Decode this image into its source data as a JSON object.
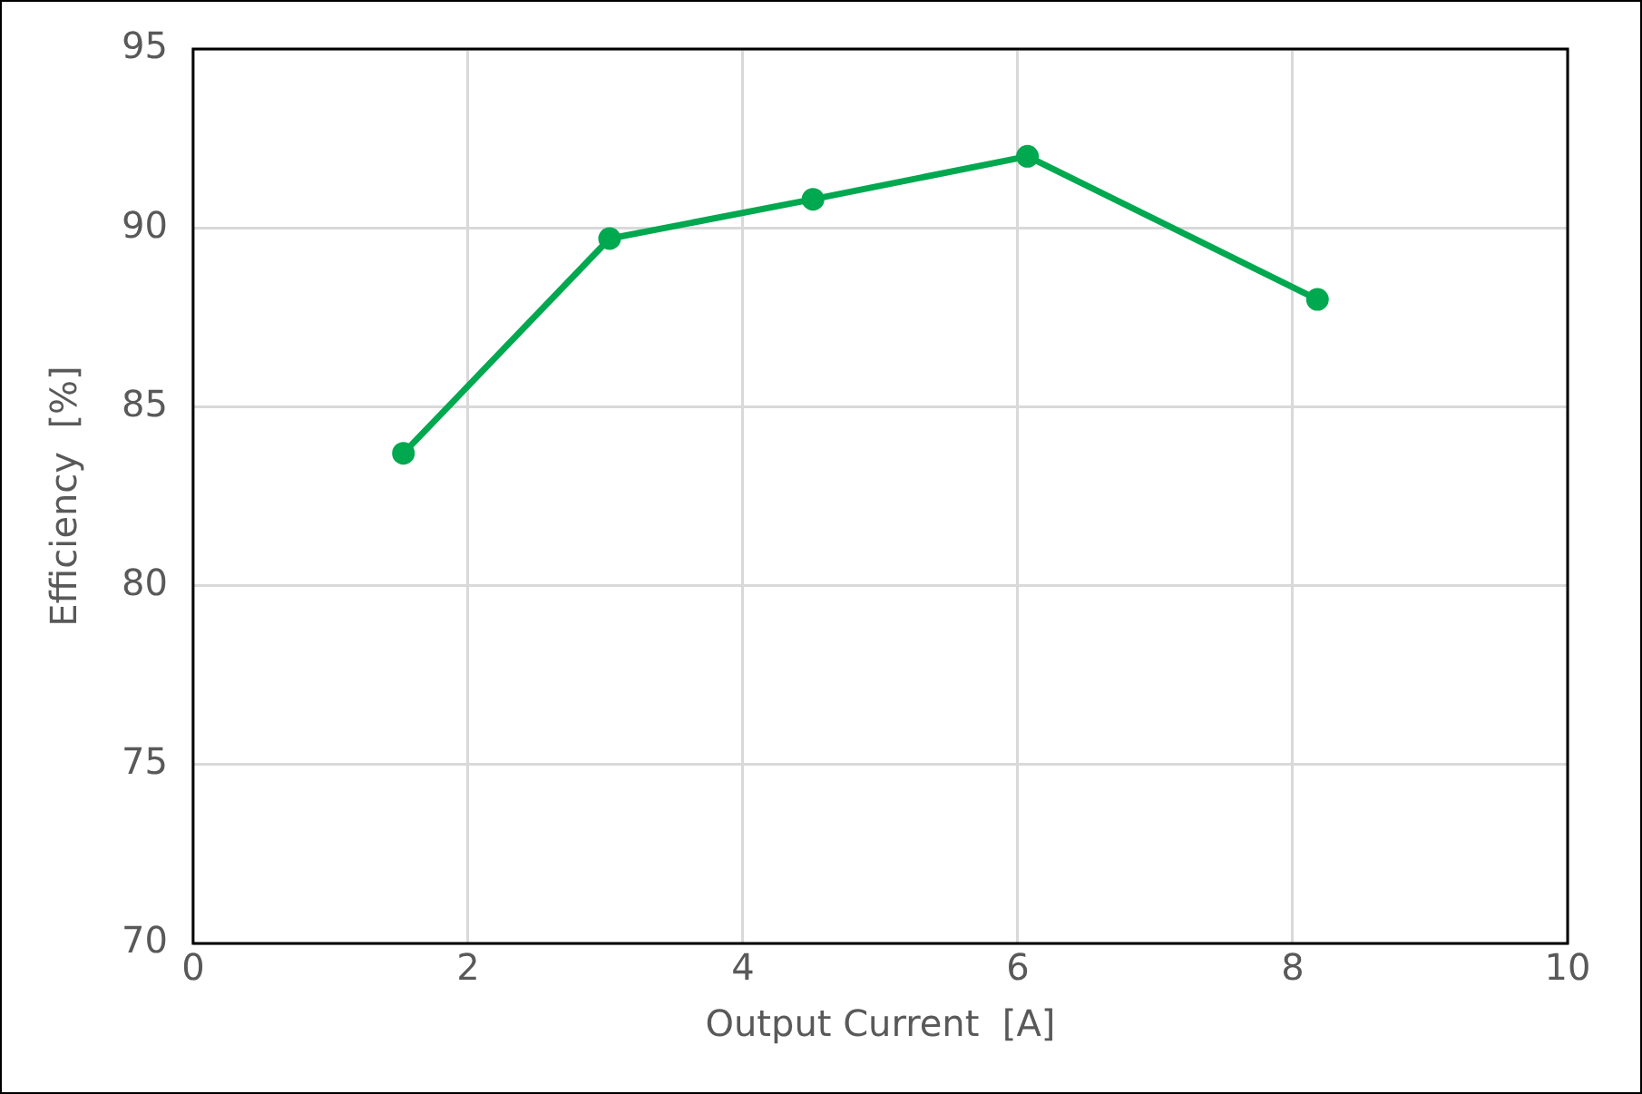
{
  "chart_data": {
    "type": "line",
    "xlabel": "Output Current  [A]",
    "ylabel": "Efficiency  [%]",
    "x": [
      1.53,
      3.03,
      4.51,
      6.07,
      8.18
    ],
    "series": [
      {
        "color": "#00a84f",
        "values": [
          83.7,
          89.7,
          90.8,
          92.0,
          88.0
        ]
      }
    ],
    "xlim": [
      0,
      10
    ],
    "xticks": [
      0,
      2,
      4,
      6,
      8,
      10
    ],
    "ylim": [
      70,
      95
    ],
    "yticks": [
      70,
      75,
      80,
      85,
      90,
      95
    ],
    "grid": true,
    "legend": false,
    "marker": "circle",
    "line_style": "solid"
  }
}
